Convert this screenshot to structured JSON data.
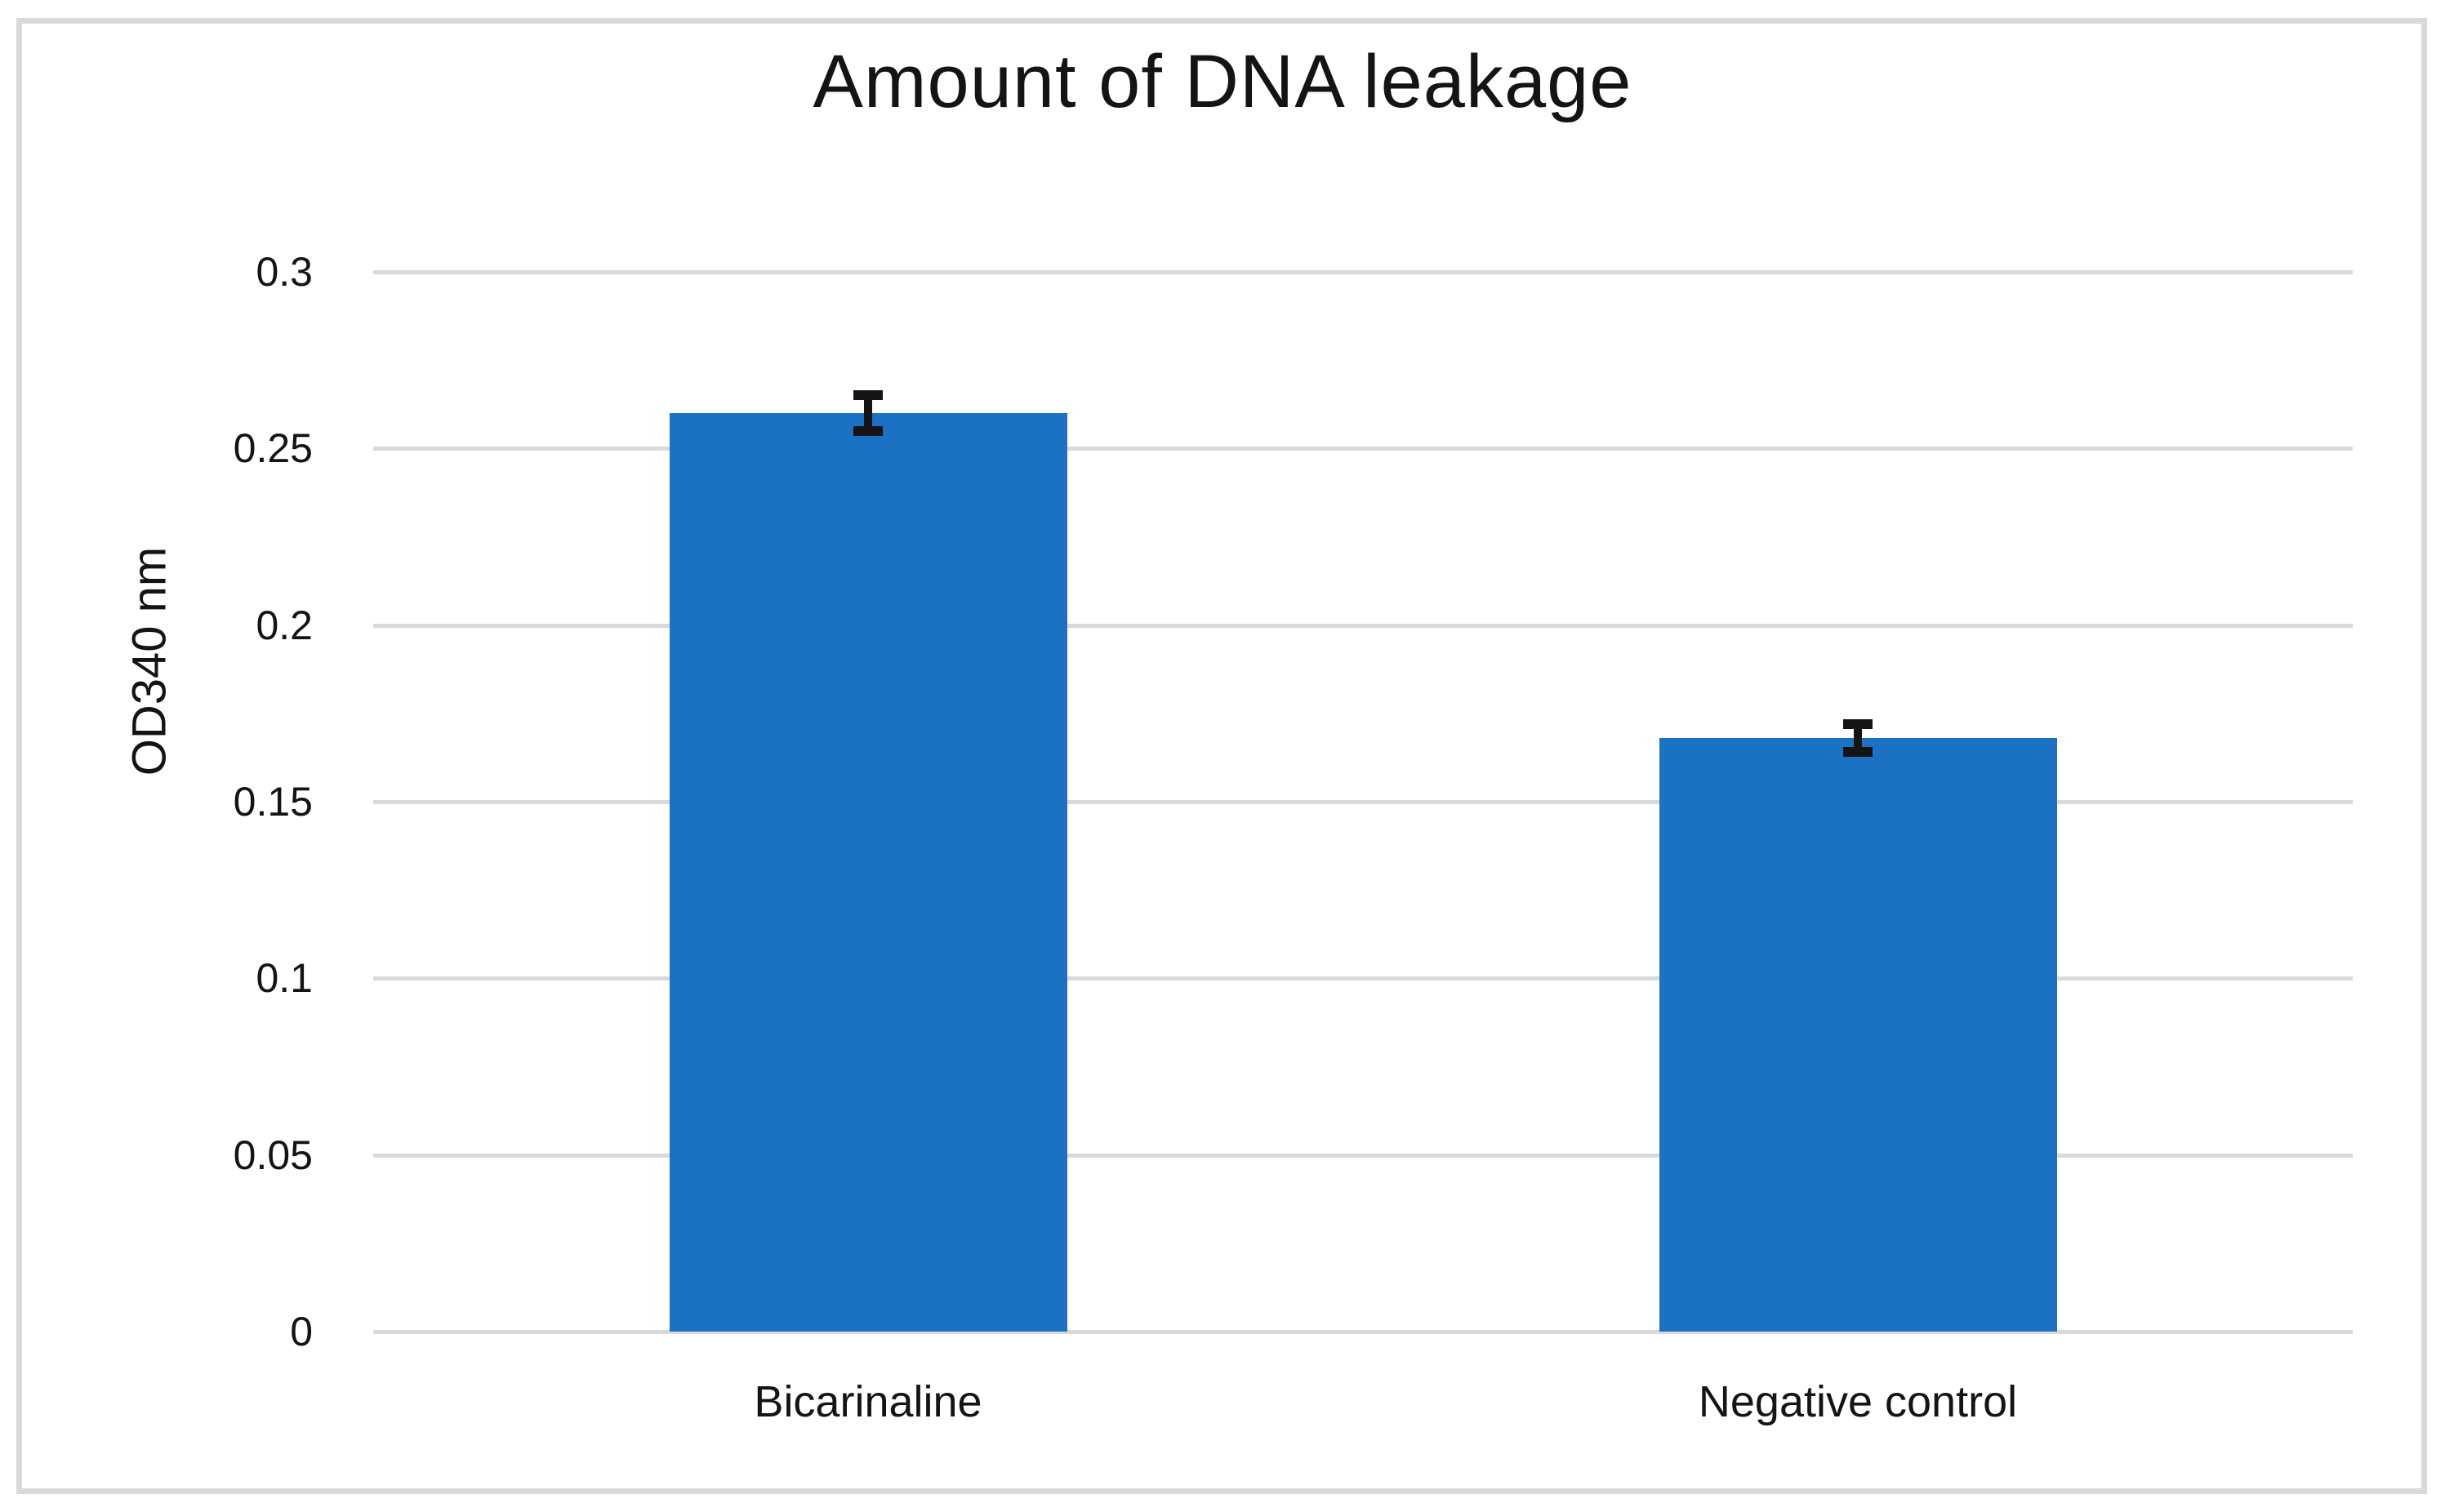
{
  "figure": {
    "title": "Amount of DNA leakage"
  },
  "chart_data": {
    "type": "bar",
    "title": "Amount of DNA leakage",
    "categories": [
      "Bicarinaline",
      "Negative control"
    ],
    "values": [
      0.26,
      0.168
    ],
    "error_bars": [
      0.005,
      0.004
    ],
    "xlabel": "",
    "ylabel": "OD340 nm",
    "ylim": [
      0,
      0.3
    ],
    "ytick_interval": 0.05,
    "ytick_labels": [
      "0",
      "0.05",
      "0.1",
      "0.15",
      "0.2",
      "0.25",
      "0.3"
    ],
    "grid": "horizontal",
    "legend": "none",
    "bar_color": "#1B72C5",
    "gridline_color": "#D9D9D9",
    "frame_color": "#D9D9D9",
    "error_bar_color": "#141414",
    "text_color": "#141414"
  }
}
